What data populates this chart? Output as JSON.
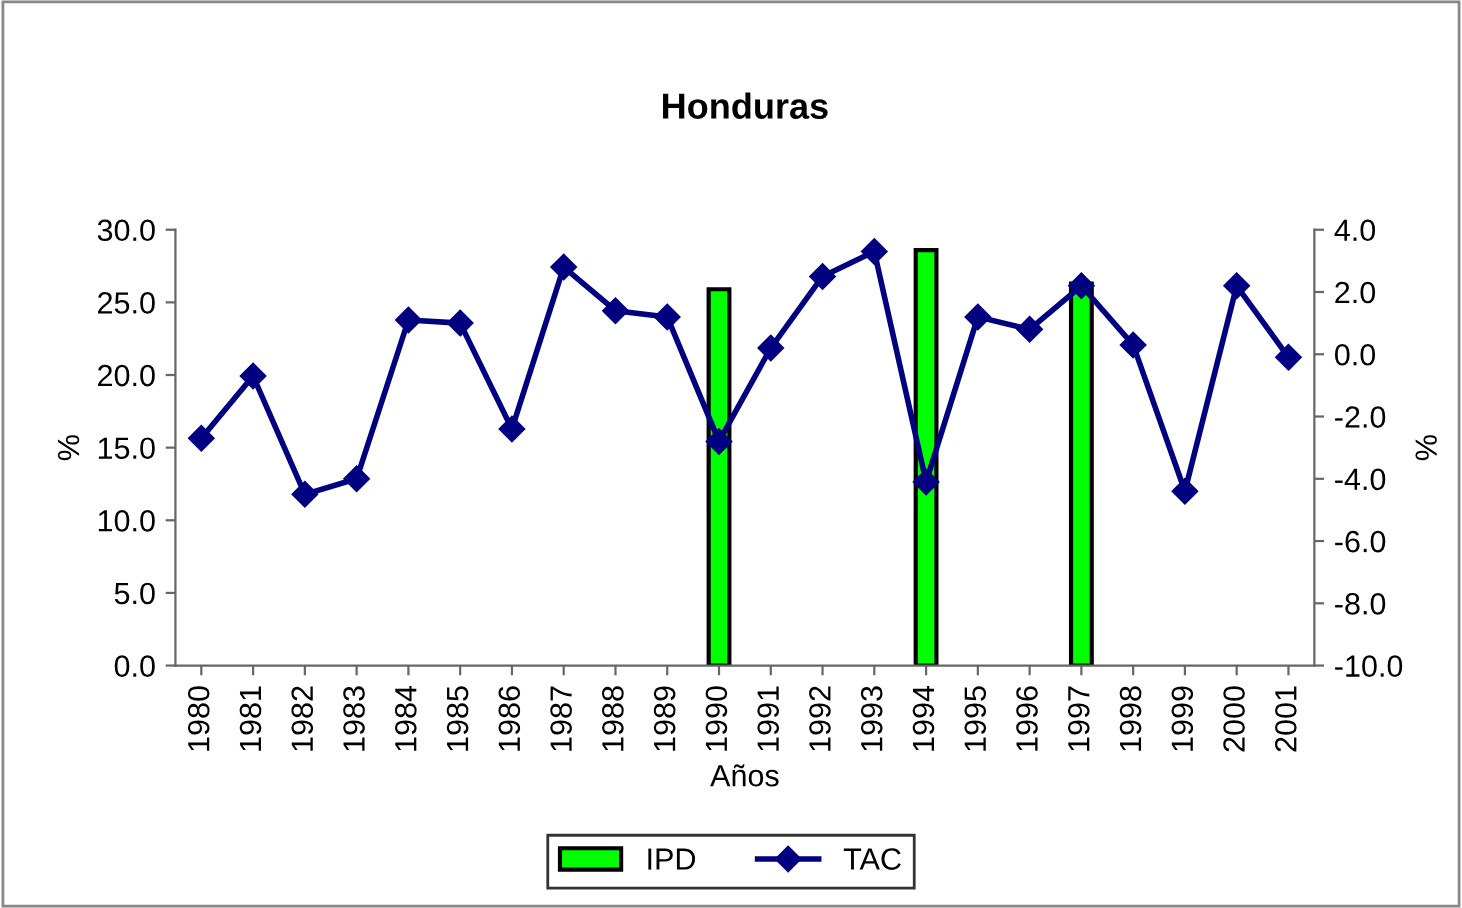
{
  "chart_data": {
    "type": "bar",
    "title": "Honduras",
    "xlabel": "Años",
    "ylabel": "%",
    "y2label": "%",
    "categories": [
      "1980",
      "1981",
      "1982",
      "1983",
      "1984",
      "1985",
      "1986",
      "1987",
      "1988",
      "1989",
      "1990",
      "1991",
      "1992",
      "1993",
      "1994",
      "1995",
      "1996",
      "1997",
      "1998",
      "1999",
      "2000",
      "2001"
    ],
    "series": [
      {
        "name": "IPD",
        "color": "#00ff00",
        "values": [
          null,
          null,
          null,
          null,
          null,
          null,
          null,
          null,
          null,
          null,
          25.9,
          null,
          null,
          null,
          28.6,
          null,
          null,
          26.3,
          null,
          null,
          null,
          null
        ]
      },
      {
        "name": "TAC",
        "type": "line",
        "axis": "y2",
        "color": "#000080",
        "marker": "diamond",
        "values": [
          -2.7,
          -0.7,
          -4.5,
          -4.0,
          1.1,
          1.0,
          -2.4,
          2.8,
          1.4,
          1.2,
          -2.8,
          0.2,
          2.5,
          3.3,
          -4.1,
          1.2,
          0.8,
          2.2,
          0.3,
          -4.4,
          2.2,
          -0.1
        ]
      }
    ],
    "ylim": [
      0,
      30
    ],
    "yticks": [
      {
        "value": 0,
        "label": "0.0"
      },
      {
        "value": 5,
        "label": "5.0"
      },
      {
        "value": 10,
        "label": "10.0"
      },
      {
        "value": 15,
        "label": "15.0"
      },
      {
        "value": 20,
        "label": "20.0"
      },
      {
        "value": 25,
        "label": "25.0"
      },
      {
        "value": 30,
        "label": "30.0"
      }
    ],
    "y2lim": [
      -10,
      4
    ],
    "y2ticks": [
      {
        "value": -10,
        "label": "-10.0"
      },
      {
        "value": -8,
        "label": "-8.0"
      },
      {
        "value": -6,
        "label": "-6.0"
      },
      {
        "value": -4,
        "label": "-4.0"
      },
      {
        "value": -2,
        "label": "-2.0"
      },
      {
        "value": 0,
        "label": "0.0"
      },
      {
        "value": 2,
        "label": "2.0"
      },
      {
        "value": 4,
        "label": "4.0"
      }
    ],
    "grid": false,
    "legend": "bottom"
  }
}
